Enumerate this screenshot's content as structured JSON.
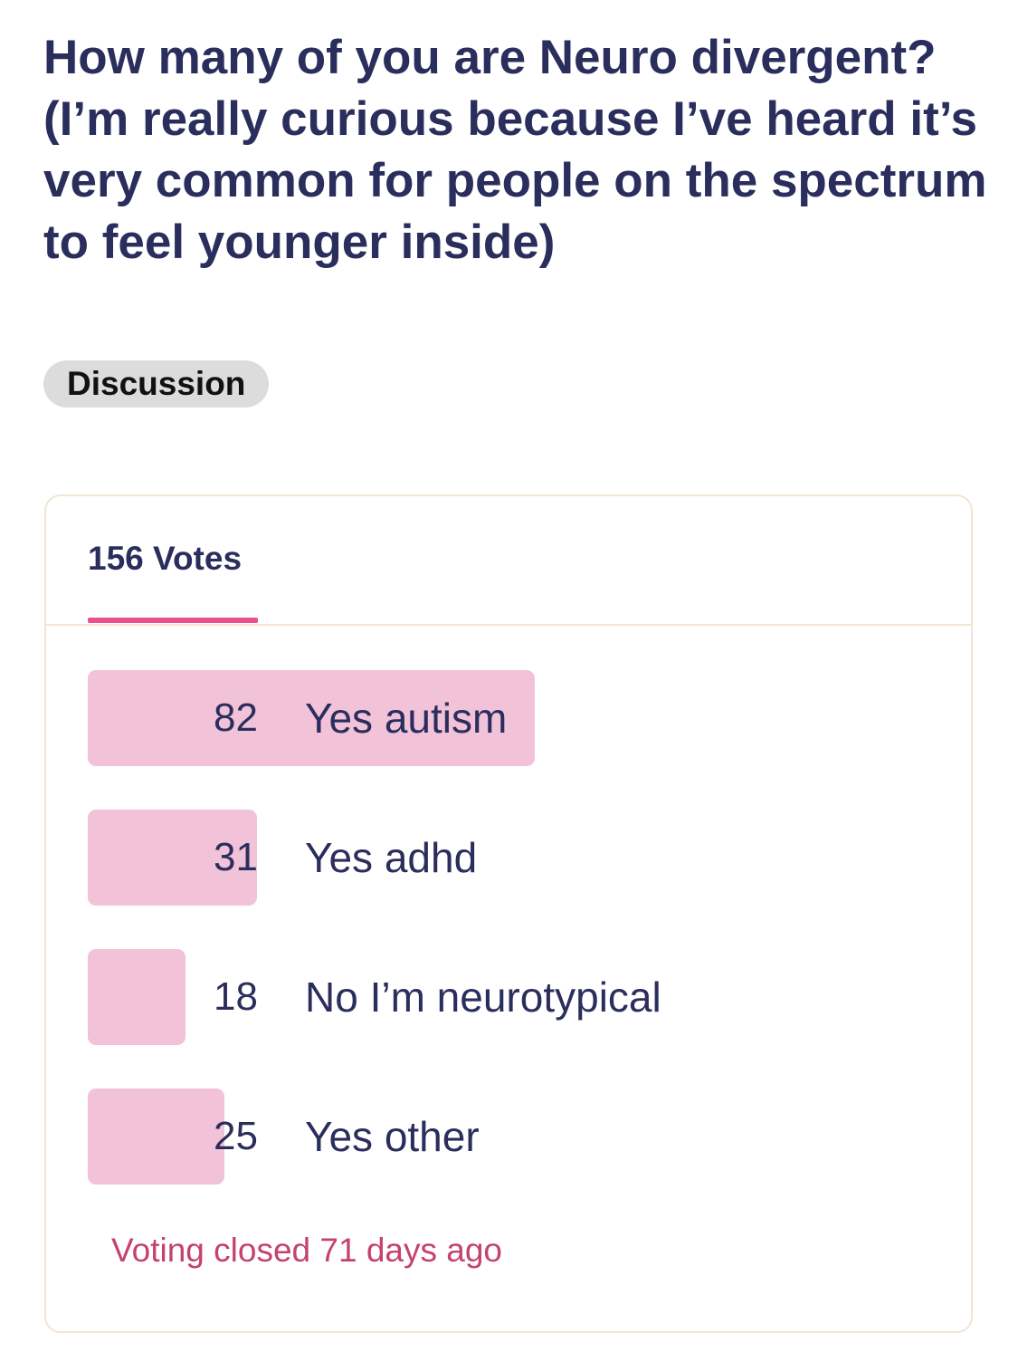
{
  "post": {
    "title": "How many of you are Neuro divergent?(I’m really curious because I’ve heard it’s very common for people on the spectrum to feel younger inside)",
    "flair": "Discussion"
  },
  "poll": {
    "votes_tab_label": "156 Votes",
    "total_votes": 156,
    "options": [
      {
        "count": "82",
        "label": "Yes autism",
        "votes": 82
      },
      {
        "count": "31",
        "label": "Yes adhd",
        "votes": 31
      },
      {
        "count": "18",
        "label": "No I’m neurotypical",
        "votes": 18
      },
      {
        "count": "25",
        "label": "Yes other",
        "votes": 25
      }
    ],
    "status": "Voting closed 71 days ago"
  },
  "colors": {
    "title_text": "#2a2e5c",
    "bar_fill": "#f1c2d8",
    "tab_indicator": "#e9508e",
    "status_text": "#c6416f",
    "card_border": "#f1e5d3",
    "flair_bg": "#dcdcdc"
  }
}
